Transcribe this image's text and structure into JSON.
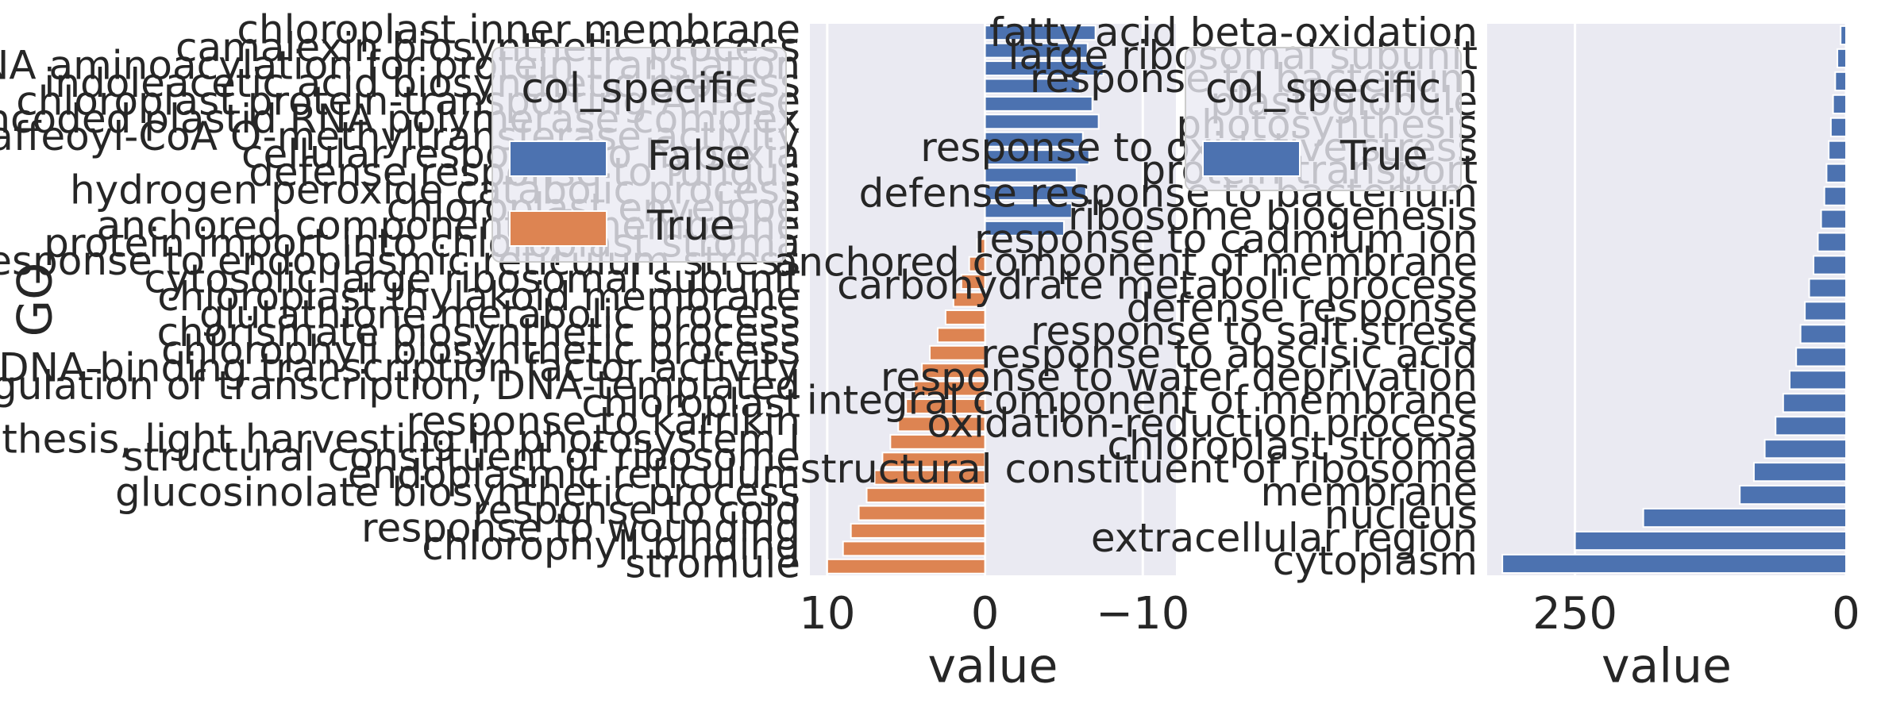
{
  "chart_data": [
    {
      "type": "barh",
      "ylabel": "GO",
      "xlabel": "value",
      "legend_title": "col_specific",
      "grid": true,
      "xlim": [
        11.1,
        -12.1
      ],
      "xticks": [
        10,
        0,
        {
          "value": -10,
          "label": "−10"
        }
      ],
      "categories": [
        "chloroplast inner membrane",
        "camalexin biosynthetic process",
        "tRNA aminoacylation for protein translation",
        "indoleacetic acid biosynthetic process",
        "chloroplast protein-transporting ATPase",
        "plastid-encoded plastid RNA polymerase complex",
        "caffeoyl-CoA O-methyltransferase activity",
        "cellular response to hypoxia",
        "defense response to fungus",
        "hydrogen peroxide catabolic process",
        "chloroplast envelope",
        "anchored component of membrane",
        "protein import into chloroplast stroma",
        "response to endoplasmic reticulum stress",
        "cytosolic large ribosomal subunit",
        "chloroplast thylakoid membrane",
        "glutathione metabolic process",
        "chorismate biosynthetic process",
        "chlorophyll biosynthetic process",
        "DNA-binding transcription factor activity",
        "regulation of transcription, DNA-templated",
        "chloroplast",
        "response to karrikin",
        "photosynthesis, light harvesting in photosystem I",
        "structural constituent of ribosome",
        "endoplasmic reticulum",
        "glucosinolate biosynthetic process",
        "response to cold",
        "response to wounding",
        "chlorophyll binding",
        "stromule"
      ],
      "series": [
        {
          "name": "False",
          "color": "#4c72b0",
          "values": [
            -7,
            -6.5,
            -7.5,
            -6,
            -6.8,
            -7.2,
            -6.2,
            -6.6,
            -5.8,
            -6.4,
            -5.5,
            -5,
            null,
            null,
            null,
            null,
            null,
            null,
            null,
            null,
            null,
            null,
            null,
            null,
            null,
            null,
            null,
            null,
            null,
            null,
            null
          ]
        },
        {
          "name": "True",
          "color": "#dd8452",
          "values": [
            null,
            null,
            null,
            null,
            null,
            null,
            null,
            null,
            null,
            null,
            null,
            null,
            0.5,
            1,
            1.5,
            2,
            2.5,
            3,
            3.5,
            4,
            4.5,
            5,
            5.5,
            6,
            6.5,
            7,
            7.5,
            8,
            8.5,
            9,
            10
          ]
        }
      ]
    },
    {
      "type": "barh",
      "xlabel": "value",
      "legend_title": "col_specific",
      "grid": true,
      "xlim": [
        331,
        0
      ],
      "xticks": [
        250,
        0
      ],
      "categories": [
        "fatty acid beta-oxidation",
        "large ribosomal subunit",
        "response to bacterium",
        "plastoglobule",
        "photosynthesis",
        "response to oxidative stress",
        "protein transport",
        "defense response to bacterium",
        "ribosome biogenesis",
        "response to cadmium ion",
        "anchored component of membrane",
        "carbohydrate metabolic process",
        "defense response",
        "response to salt stress",
        "response to abscisic acid",
        "response to water deprivation",
        "integral component of membrane",
        "oxidation-reduction process",
        "chloroplast stroma",
        "structural constituent of ribosome",
        "membrane",
        "nucleus",
        "extracellular region",
        "cytoplasm"
      ],
      "series": [
        {
          "name": "True",
          "color": "#4c72b0",
          "values": [
            5,
            8,
            10,
            12,
            14,
            16,
            18,
            20,
            23,
            26,
            30,
            34,
            38,
            42,
            46,
            52,
            58,
            65,
            75,
            85,
            98,
            187,
            250,
            317
          ]
        }
      ]
    }
  ]
}
